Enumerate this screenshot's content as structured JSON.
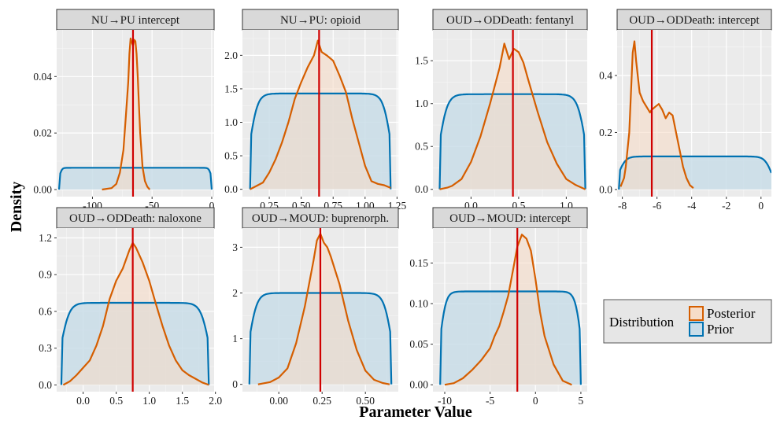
{
  "chart_data": {
    "type": "density-facets",
    "xlabel": "Parameter Value",
    "ylabel": "Density",
    "legend": {
      "title": "Distribution",
      "position": "right",
      "entries": [
        {
          "label": "Posterior",
          "color": "#D55E00",
          "fill": "#F6DCC8"
        },
        {
          "label": "Prior",
          "color": "#0072B2",
          "fill": "#C9DDE8"
        }
      ]
    },
    "marker_color": "#D00000",
    "panels": [
      {
        "title": "NU→PU intercept",
        "xlim": [
          -130,
          2
        ],
        "ylim": [
          -0.0025,
          0.0565
        ],
        "xticks": [
          -100,
          -50,
          0
        ],
        "xtick_labels": [
          "-100",
          "-50",
          "0"
        ],
        "yticks": [
          0,
          0.02,
          0.04
        ],
        "ytick_labels": [
          "0.00",
          "0.02",
          "0.04"
        ],
        "posterior_mean": -66,
        "prior": {
          "a": -128,
          "b": 0,
          "w": 4,
          "h": 0.0077
        },
        "posterior": {
          "x": [
            -92,
            -84,
            -80,
            -77,
            -74,
            -72,
            -70,
            -69,
            -68,
            -67,
            -66,
            -65,
            -64,
            -63,
            -62,
            -61,
            -60,
            -58,
            -56,
            -54,
            -52
          ],
          "y": [
            0,
            0.0005,
            0.002,
            0.006,
            0.014,
            0.026,
            0.038,
            0.048,
            0.0535,
            0.052,
            0.051,
            0.053,
            0.0525,
            0.048,
            0.04,
            0.03,
            0.02,
            0.008,
            0.003,
            0.001,
            0
          ]
        }
      },
      {
        "title": "NU→PU: opioid",
        "xlim": [
          0.04,
          1.26
        ],
        "ylim": [
          -0.11,
          2.38
        ],
        "xticks": [
          0.25,
          0.5,
          0.75,
          1.0,
          1.25
        ],
        "xtick_labels": [
          "0.25",
          "0.50",
          "0.75",
          "1.00",
          "1.25"
        ],
        "yticks": [
          0,
          0.5,
          1.0,
          1.5,
          2.0
        ],
        "ytick_labels": [
          "0.0",
          "0.5",
          "1.0",
          "1.5",
          "2.0"
        ],
        "posterior_mean": 0.64,
        "prior": {
          "a": 0.1,
          "b": 1.2,
          "w": 0.12,
          "h": 1.43
        },
        "posterior": {
          "x": [
            0.1,
            0.15,
            0.2,
            0.25,
            0.3,
            0.35,
            0.4,
            0.45,
            0.5,
            0.55,
            0.6,
            0.63,
            0.66,
            0.7,
            0.75,
            0.8,
            0.85,
            0.9,
            0.95,
            1.0,
            1.05,
            1.1,
            1.15,
            1.2
          ],
          "y": [
            0,
            0.05,
            0.1,
            0.25,
            0.45,
            0.7,
            1.0,
            1.35,
            1.6,
            1.82,
            2.0,
            2.22,
            2.05,
            2.0,
            1.92,
            1.7,
            1.45,
            1.05,
            0.7,
            0.35,
            0.12,
            0.08,
            0.06,
            0.02
          ]
        }
      },
      {
        "title": "OUD→ODDeath: fentanyl",
        "xlim": [
          -0.4,
          1.22
        ],
        "ylim": [
          -0.085,
          1.86
        ],
        "xticks": [
          0,
          0.5,
          1.0
        ],
        "xtick_labels": [
          "0.0",
          "0.5",
          "1.0"
        ],
        "yticks": [
          0,
          0.5,
          1.0,
          1.5
        ],
        "ytick_labels": [
          "0.0",
          "0.5",
          "1.0",
          "1.5"
        ],
        "posterior_mean": 0.44,
        "prior": {
          "a": -0.33,
          "b": 1.2,
          "w": 0.17,
          "h": 1.11
        },
        "posterior": {
          "x": [
            -0.33,
            -0.25,
            -0.2,
            -0.1,
            0.0,
            0.1,
            0.2,
            0.3,
            0.35,
            0.4,
            0.45,
            0.5,
            0.55,
            0.6,
            0.7,
            0.8,
            0.9,
            1.0,
            1.1,
            1.2
          ],
          "y": [
            0,
            0.02,
            0.04,
            0.12,
            0.32,
            0.62,
            1.0,
            1.42,
            1.7,
            1.52,
            1.64,
            1.6,
            1.48,
            1.28,
            0.9,
            0.55,
            0.3,
            0.12,
            0.05,
            0
          ]
        }
      },
      {
        "title": "OUD→ODDeath: intercept",
        "xlim": [
          -8.3,
          0.6
        ],
        "ylim": [
          -0.025,
          0.56
        ],
        "xticks": [
          -8,
          -6,
          -4,
          -2,
          0
        ],
        "xtick_labels": [
          "-8",
          "-6",
          "-4",
          "-2",
          "0"
        ],
        "yticks": [
          0,
          0.2,
          0.4
        ],
        "ytick_labels": [
          "0.0",
          "0.2",
          "0.4"
        ],
        "posterior_mean": -6.3,
        "prior": {
          "a": -8.2,
          "b": 0.6,
          "w": 0.8,
          "h": 0.116
        },
        "posterior": {
          "x": [
            -8.1,
            -7.9,
            -7.8,
            -7.6,
            -7.5,
            -7.4,
            -7.3,
            -7.2,
            -7.0,
            -6.8,
            -6.6,
            -6.4,
            -6.3,
            -6.1,
            -5.9,
            -5.7,
            -5.5,
            -5.3,
            -5.1,
            -4.9,
            -4.7,
            -4.5,
            -4.3,
            -4.1,
            -3.9
          ],
          "y": [
            0.01,
            0.04,
            0.08,
            0.2,
            0.34,
            0.48,
            0.52,
            0.45,
            0.34,
            0.31,
            0.29,
            0.27,
            0.28,
            0.29,
            0.3,
            0.28,
            0.25,
            0.27,
            0.26,
            0.2,
            0.14,
            0.08,
            0.04,
            0.015,
            0.005
          ]
        }
      },
      {
        "title": "OUD→ODDeath: naloxone",
        "xlim": [
          -0.4,
          1.98
        ],
        "ylim": [
          -0.055,
          1.28
        ],
        "xticks": [
          0,
          0.5,
          1.0,
          1.5,
          2.0
        ],
        "xtick_labels": [
          "0.0",
          "0.5",
          "1.0",
          "1.5",
          "2.0"
        ],
        "yticks": [
          0,
          0.3,
          0.6,
          0.9,
          1.2
        ],
        "ytick_labels": [
          "0.0",
          "0.3",
          "0.6",
          "0.9",
          "1.2"
        ],
        "posterior_mean": 0.75,
        "prior": {
          "a": -0.33,
          "b": 1.9,
          "w": 0.25,
          "h": 0.67
        },
        "posterior": {
          "x": [
            -0.3,
            -0.2,
            -0.1,
            0.0,
            0.1,
            0.2,
            0.3,
            0.4,
            0.5,
            0.6,
            0.7,
            0.75,
            0.8,
            0.9,
            1.0,
            1.1,
            1.2,
            1.3,
            1.4,
            1.5,
            1.6,
            1.7,
            1.8,
            1.9
          ],
          "y": [
            0,
            0.03,
            0.08,
            0.14,
            0.2,
            0.32,
            0.48,
            0.7,
            0.85,
            0.95,
            1.1,
            1.16,
            1.12,
            1.0,
            0.85,
            0.66,
            0.48,
            0.32,
            0.2,
            0.12,
            0.08,
            0.05,
            0.02,
            0
          ]
        }
      },
      {
        "title": "OUD→MOUD: buprenorph.",
        "xlim": [
          -0.21,
          0.69
        ],
        "ylim": [
          -0.16,
          3.42
        ],
        "xticks": [
          0,
          0.25,
          0.5
        ],
        "xtick_labels": [
          "0.00",
          "0.25",
          "0.50"
        ],
        "yticks": [
          0,
          1,
          2,
          3
        ],
        "ytick_labels": [
          "0",
          "1",
          "2",
          "3"
        ],
        "posterior_mean": 0.24,
        "prior": {
          "a": -0.17,
          "b": 0.65,
          "w": 0.09,
          "h": 2.0
        },
        "posterior": {
          "x": [
            -0.12,
            -0.05,
            0.0,
            0.05,
            0.1,
            0.15,
            0.2,
            0.22,
            0.24,
            0.26,
            0.28,
            0.3,
            0.35,
            0.4,
            0.45,
            0.5,
            0.55,
            0.6,
            0.64
          ],
          "y": [
            0,
            0.05,
            0.15,
            0.35,
            0.9,
            1.7,
            2.7,
            3.15,
            3.3,
            3.1,
            3.0,
            2.8,
            2.2,
            1.4,
            0.75,
            0.3,
            0.1,
            0.03,
            0
          ]
        }
      },
      {
        "title": "OUD→MOUD: intercept",
        "xlim": [
          -11.3,
          5.7
        ],
        "ylim": [
          -0.0085,
          0.193
        ],
        "xticks": [
          -10,
          -5,
          0,
          5
        ],
        "xtick_labels": [
          "-10",
          "-5",
          "0",
          "5"
        ],
        "yticks": [
          0,
          0.05,
          0.1,
          0.15
        ],
        "ytick_labels": [
          "0.00",
          "0.05",
          "0.10",
          "0.15"
        ],
        "posterior_mean": -2,
        "prior": {
          "a": -10.5,
          "b": 5,
          "w": 1.3,
          "h": 0.115
        },
        "posterior": {
          "x": [
            -10,
            -9,
            -8,
            -7,
            -6,
            -5,
            -4.5,
            -4,
            -3.5,
            -3,
            -2.5,
            -2,
            -1.5,
            -1,
            -0.5,
            0,
            0.5,
            1,
            2,
            3,
            4
          ],
          "y": [
            0,
            0.002,
            0.008,
            0.018,
            0.03,
            0.045,
            0.06,
            0.072,
            0.09,
            0.11,
            0.14,
            0.17,
            0.185,
            0.18,
            0.165,
            0.13,
            0.09,
            0.06,
            0.025,
            0.005,
            0
          ]
        }
      }
    ]
  }
}
